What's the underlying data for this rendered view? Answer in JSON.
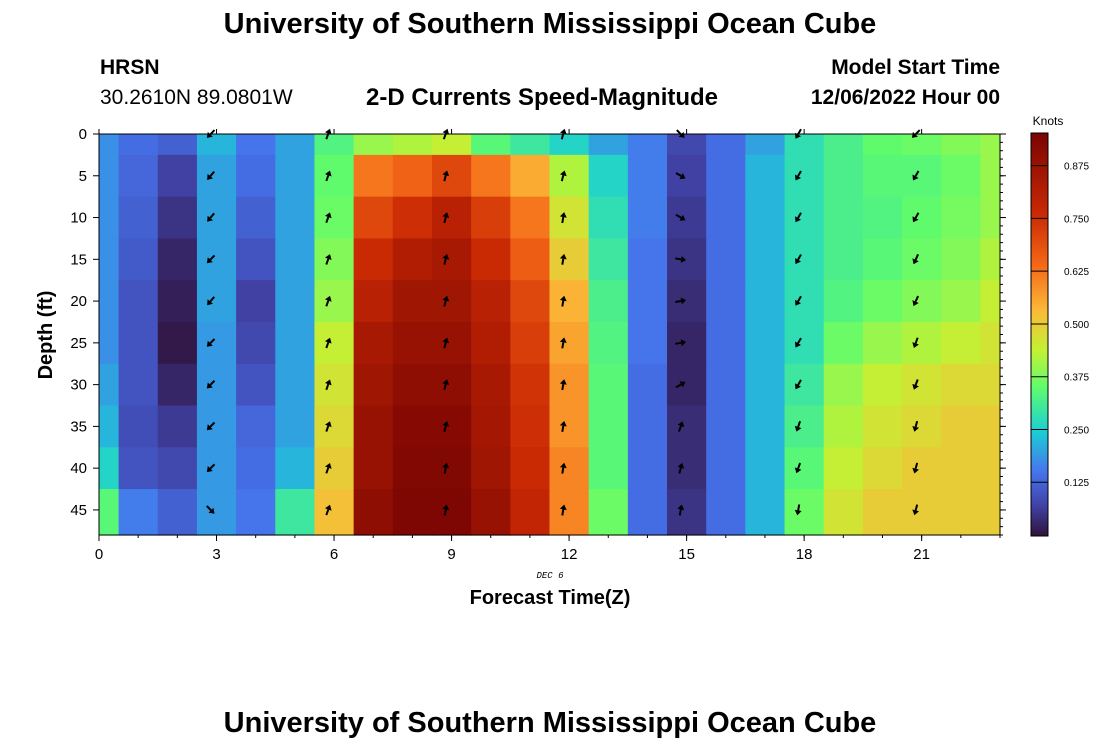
{
  "header": {
    "title": "University of Southern Mississippi Ocean Cube",
    "station": "HRSN",
    "coords": "30.2610N  89.0801W",
    "subtitle": "2-D Currents Speed-Magnitude",
    "model_start_label": "Model Start Time",
    "model_start_value": "12/06/2022 Hour 00"
  },
  "footer": {
    "title": "University of Southern Mississippi Ocean Cube"
  },
  "chart_data": {
    "type": "heatmap",
    "title": "2-D Currents Speed-Magnitude",
    "xlabel": "Forecast Time(Z)",
    "ylabel": "Depth (ft)",
    "date_label": "DEC 6",
    "xlim": [
      0,
      23
    ],
    "ylim": [
      48,
      0
    ],
    "x_ticks": [
      0,
      3,
      6,
      9,
      12,
      15,
      18,
      21
    ],
    "y_ticks": [
      0,
      5,
      10,
      15,
      20,
      25,
      30,
      35,
      40,
      45
    ],
    "colorbar": {
      "label": "Knots",
      "range": [
        0,
        0.95
      ],
      "ticks": [
        "0.125",
        "0.250",
        "0.375",
        "0.500",
        "0.625",
        "0.750",
        "0.875"
      ]
    },
    "hours": [
      0,
      1,
      2,
      3,
      4,
      5,
      6,
      7,
      8,
      9,
      10,
      11,
      12,
      13,
      14,
      15,
      16,
      17,
      18,
      19,
      20,
      21,
      22,
      23
    ],
    "depths": [
      0,
      5,
      10,
      15,
      20,
      25,
      30,
      35,
      40,
      45
    ],
    "speed_knots": [
      [
        0.18,
        0.14,
        0.12,
        0.22,
        0.15,
        0.2,
        0.33,
        0.4,
        0.42,
        0.44,
        0.34,
        0.3,
        0.26,
        0.2,
        0.16,
        0.08,
        0.14,
        0.2,
        0.28,
        0.32,
        0.35,
        0.36,
        0.38,
        0.4
      ],
      [
        0.18,
        0.13,
        0.07,
        0.2,
        0.14,
        0.2,
        0.35,
        0.62,
        0.65,
        0.7,
        0.62,
        0.55,
        0.42,
        0.26,
        0.16,
        0.07,
        0.14,
        0.22,
        0.28,
        0.32,
        0.34,
        0.34,
        0.36,
        0.4
      ],
      [
        0.18,
        0.12,
        0.05,
        0.2,
        0.12,
        0.2,
        0.36,
        0.7,
        0.75,
        0.8,
        0.72,
        0.62,
        0.46,
        0.28,
        0.16,
        0.06,
        0.14,
        0.22,
        0.28,
        0.32,
        0.33,
        0.35,
        0.37,
        0.4
      ],
      [
        0.18,
        0.11,
        0.03,
        0.2,
        0.1,
        0.2,
        0.38,
        0.76,
        0.82,
        0.84,
        0.76,
        0.66,
        0.5,
        0.3,
        0.15,
        0.05,
        0.14,
        0.22,
        0.28,
        0.32,
        0.34,
        0.36,
        0.38,
        0.42
      ],
      [
        0.18,
        0.1,
        0.02,
        0.2,
        0.07,
        0.2,
        0.4,
        0.8,
        0.86,
        0.86,
        0.8,
        0.7,
        0.54,
        0.32,
        0.15,
        0.04,
        0.14,
        0.22,
        0.28,
        0.33,
        0.36,
        0.38,
        0.4,
        0.44
      ],
      [
        0.18,
        0.1,
        0.01,
        0.19,
        0.08,
        0.2,
        0.44,
        0.84,
        0.88,
        0.88,
        0.82,
        0.72,
        0.56,
        0.33,
        0.15,
        0.03,
        0.14,
        0.22,
        0.28,
        0.36,
        0.4,
        0.42,
        0.44,
        0.46
      ],
      [
        0.2,
        0.1,
        0.03,
        0.19,
        0.1,
        0.2,
        0.46,
        0.86,
        0.9,
        0.9,
        0.84,
        0.74,
        0.58,
        0.34,
        0.14,
        0.03,
        0.14,
        0.22,
        0.3,
        0.4,
        0.44,
        0.46,
        0.48,
        0.48
      ],
      [
        0.22,
        0.09,
        0.06,
        0.19,
        0.13,
        0.2,
        0.48,
        0.88,
        0.92,
        0.92,
        0.85,
        0.75,
        0.58,
        0.34,
        0.14,
        0.04,
        0.14,
        0.22,
        0.32,
        0.42,
        0.46,
        0.48,
        0.5,
        0.5
      ],
      [
        0.26,
        0.1,
        0.08,
        0.19,
        0.14,
        0.22,
        0.5,
        0.88,
        0.93,
        0.93,
        0.86,
        0.76,
        0.6,
        0.34,
        0.14,
        0.04,
        0.14,
        0.22,
        0.34,
        0.44,
        0.48,
        0.5,
        0.5,
        0.5
      ],
      [
        0.34,
        0.16,
        0.12,
        0.19,
        0.15,
        0.3,
        0.52,
        0.9,
        0.94,
        0.94,
        0.88,
        0.78,
        0.6,
        0.36,
        0.14,
        0.05,
        0.14,
        0.22,
        0.36,
        0.46,
        0.5,
        0.5,
        0.5,
        0.5
      ]
    ],
    "arrow_hours": [
      2.85,
      5.85,
      8.85,
      11.85,
      14.85,
      17.85,
      20.85
    ],
    "arrow_columns": [
      {
        "hour": 2.85,
        "dirs_deg": [
          225,
          220,
          220,
          225,
          220,
          225,
          225,
          225,
          225,
          135
        ]
      },
      {
        "hour": 5.85,
        "dirs_deg": [
          20,
          20,
          20,
          20,
          20,
          20,
          20,
          20,
          20,
          20
        ]
      },
      {
        "hour": 8.85,
        "dirs_deg": [
          20,
          15,
          15,
          15,
          15,
          15,
          15,
          15,
          10,
          10
        ]
      },
      {
        "hour": 11.85,
        "dirs_deg": [
          15,
          15,
          10,
          10,
          10,
          10,
          10,
          10,
          10,
          10
        ]
      },
      {
        "hour": 14.85,
        "dirs_deg": [
          135,
          120,
          120,
          100,
          80,
          80,
          60,
          20,
          15,
          10
        ]
      },
      {
        "hour": 17.85,
        "dirs_deg": [
          210,
          210,
          210,
          210,
          210,
          210,
          210,
          200,
          200,
          190
        ]
      },
      {
        "hour": 20.85,
        "dirs_deg": [
          225,
          210,
          210,
          205,
          205,
          200,
          200,
          195,
          195,
          195
        ]
      }
    ]
  }
}
